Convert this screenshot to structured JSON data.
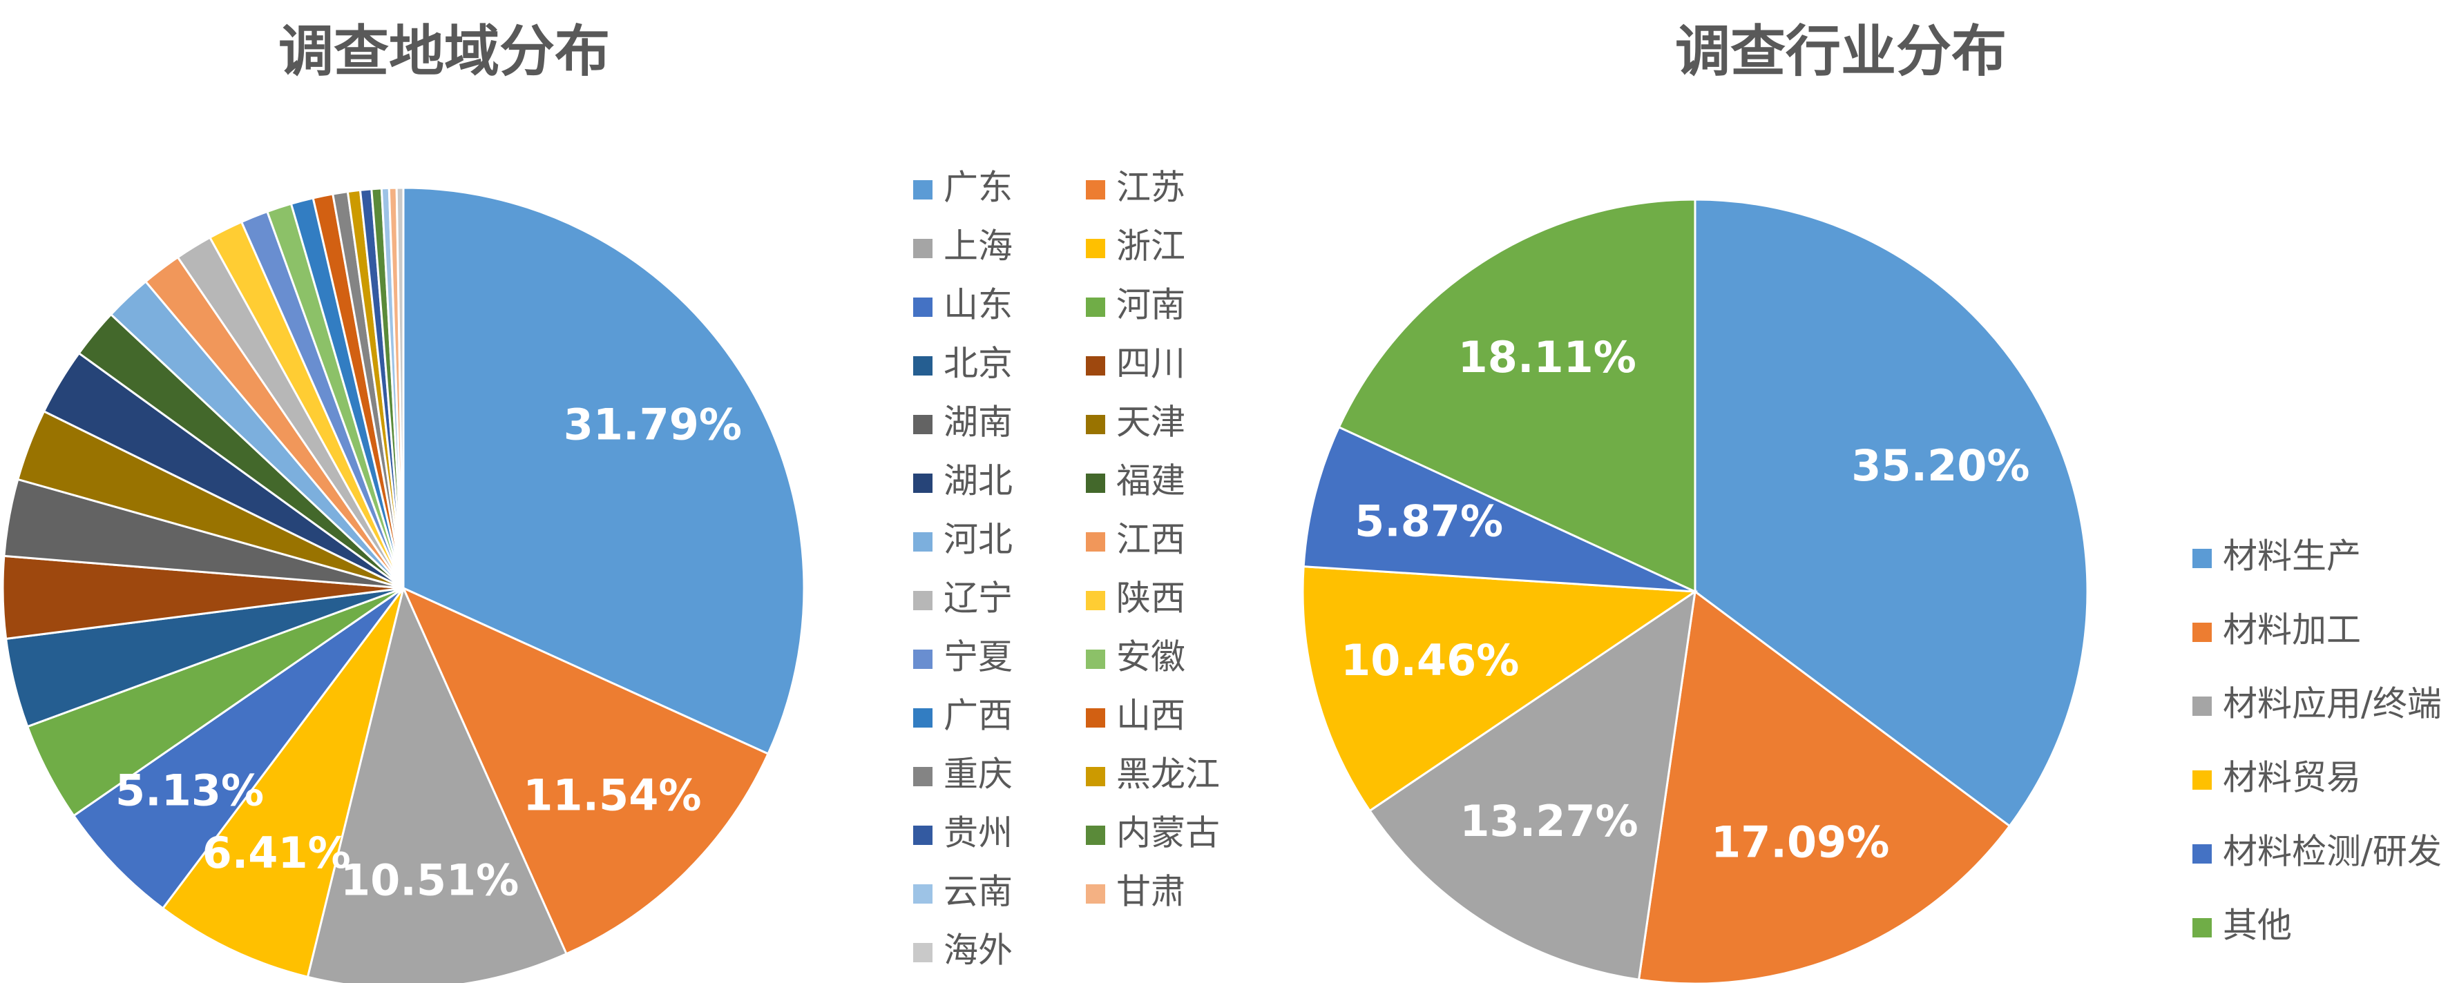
{
  "chart_data": [
    {
      "type": "pie",
      "title": "调查地域分布",
      "categories": [
        "广东",
        "江苏",
        "上海",
        "浙江",
        "山东",
        "河南",
        "北京",
        "四川",
        "湖南",
        "天津",
        "湖北",
        "福建",
        "河北",
        "江西",
        "辽宁",
        "陕西",
        "宁夏",
        "安徽",
        "广西",
        "山西",
        "重庆",
        "黑龙江",
        "贵州",
        "内蒙古",
        "云南",
        "甘肃",
        "海外"
      ],
      "values": [
        31.79,
        11.54,
        10.51,
        6.41,
        5.13,
        4.0,
        3.6,
        3.3,
        3.1,
        2.9,
        2.7,
        2.0,
        1.9,
        1.6,
        1.5,
        1.4,
        1.1,
        1.0,
        0.9,
        0.8,
        0.6,
        0.5,
        0.45,
        0.4,
        0.3,
        0.3,
        0.27
      ],
      "value_labels": [
        "31.79%",
        "11.54%",
        "10.51%",
        "6.41%",
        "5.13%",
        null,
        null,
        null,
        null,
        null,
        null,
        null,
        null,
        null,
        null,
        null,
        null,
        null,
        null,
        null,
        null,
        null,
        null,
        null,
        null,
        null,
        null
      ],
      "colors": [
        "#5b9bd5",
        "#ed7d31",
        "#a5a5a5",
        "#ffc000",
        "#4472c4",
        "#70ad47",
        "#255e91",
        "#9e480e",
        "#636363",
        "#997300",
        "#264478",
        "#43682b",
        "#7cafdd",
        "#f1975a",
        "#b7b7b7",
        "#ffcd33",
        "#698ed0",
        "#8cc168",
        "#327dc2",
        "#d26012",
        "#848484",
        "#cc9a00",
        "#335aa1",
        "#5a8a39",
        "#9dc3e6",
        "#f4b183",
        "#c9c9c9"
      ]
    },
    {
      "type": "pie",
      "title": "调查行业分布",
      "categories": [
        "材料生产",
        "材料加工",
        "材料应用/终端",
        "材料贸易",
        "材料检测/研发",
        "其他"
      ],
      "values": [
        35.2,
        17.09,
        13.27,
        10.46,
        5.87,
        18.11
      ],
      "value_labels": [
        "35.20%",
        "17.09%",
        "13.27%",
        "10.46%",
        "5.87%",
        "18.11%"
      ],
      "colors": [
        "#5b9bd5",
        "#ed7d31",
        "#a5a5a5",
        "#ffc000",
        "#4472c4",
        "#70ad47"
      ]
    }
  ]
}
